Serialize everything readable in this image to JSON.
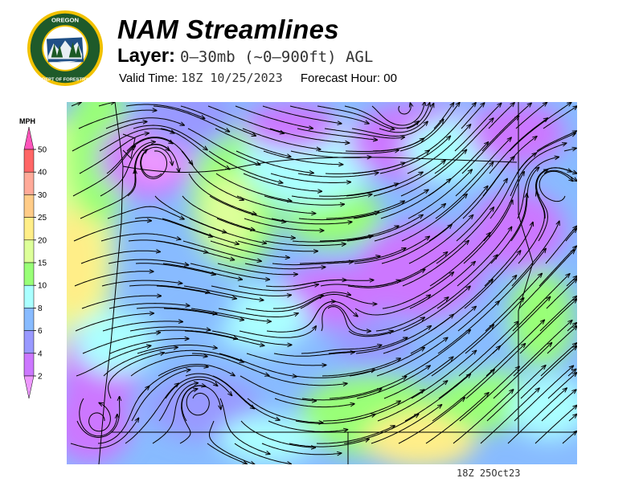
{
  "header": {
    "logo_text": "OREGON DEPARTMENT OF FORESTRY",
    "title": "NAM Streamlines",
    "layer_label": "Layer:",
    "layer_value": "0–30mb (~0–900ft) AGL",
    "valid_label": "Valid Time:",
    "valid_value": "18Z 10/25/2023",
    "forecast_label": "Forecast Hour:",
    "forecast_value": "00"
  },
  "legend": {
    "unit": "MPH",
    "ticks": [
      "50",
      "40",
      "30",
      "25",
      "20",
      "15",
      "10",
      "8",
      "6",
      "4",
      "2"
    ],
    "colors": {
      "above_50": "#ff55bb",
      "40_50": "#ff6666",
      "30_40": "#ffaa99",
      "25_30": "#ffcc88",
      "20_25": "#ffee88",
      "15_20": "#ddff99",
      "10_15": "#99ff77",
      "8_10": "#aaffff",
      "6_8": "#88bbff",
      "4_6": "#9999ff",
      "2_4": "#cc77ff",
      "below_2": "#ee99ff"
    }
  },
  "footer": {
    "stamp": "18Z 25Oct23"
  }
}
